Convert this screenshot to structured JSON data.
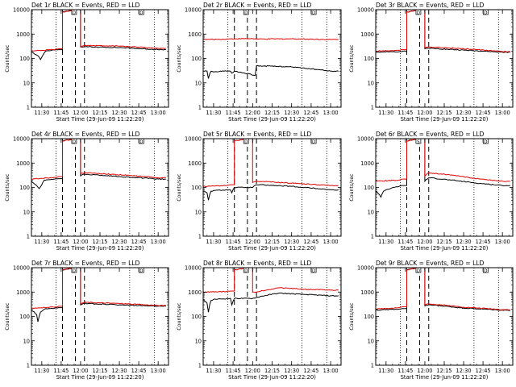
{
  "page": {
    "background": "#ffffff",
    "colors": {
      "events": "#000000",
      "lld": "#e00000",
      "axis": "#000000"
    }
  },
  "chart_data": [
    {
      "type": "line",
      "title": "Det 1r BLACK = Events, RED = LLD",
      "ylabel": "Counts/sec",
      "xlabel": "Start Time (29-Jun-09 11:22:20)",
      "yscale": "log",
      "ylim": [
        1,
        10000
      ],
      "xlim": [
        "11:22",
        "13:08"
      ],
      "x_ticks": [
        "11:30",
        "11:45",
        "12:00",
        "12:15",
        "12:30",
        "12:45",
        "13:00"
      ],
      "y_ticks": [
        "1",
        "10",
        "100",
        "1000",
        "10000"
      ],
      "dashed_lines": [
        "11:46",
        "11:56",
        "12:03"
      ],
      "dotted_lines": [
        "11:41",
        "12:38",
        "12:57"
      ],
      "markers": [
        {
          "label": "D",
          "x": "11:55"
        },
        {
          "label": "D",
          "x": "12:47"
        }
      ],
      "series": [
        {
          "name": "Events",
          "color": "#000000",
          "pattern": "g1_ev",
          "x": [
            "11:22",
            "11:27",
            "11:29",
            "11:31",
            "11:33",
            "11:38",
            "11:43",
            "11:46",
            "11:56",
            "12:00",
            "12:03",
            "12:30",
            "13:00",
            "13:06"
          ],
          "y": [
            180,
            130,
            90,
            140,
            200,
            220,
            230,
            8000,
            10000,
            300,
            300,
            280,
            230,
            230
          ]
        },
        {
          "name": "LLD",
          "color": "#e00000",
          "pattern": "g1_lld",
          "x": [
            "11:22",
            "11:30",
            "11:40",
            "11:43",
            "11:46",
            "11:56",
            "12:00",
            "12:03",
            "12:30",
            "13:00",
            "13:06"
          ],
          "y": [
            200,
            215,
            230,
            250,
            8000,
            10000,
            300,
            340,
            320,
            260,
            260
          ]
        }
      ]
    },
    {
      "type": "line",
      "title": "Det 2r BLACK = Events, RED = LLD",
      "ylabel": "Counts/sec",
      "xlabel": "Start Time (29-Jun-09 11:22:20)",
      "yscale": "log",
      "ylim": [
        1,
        10000
      ],
      "xlim": [
        "11:22",
        "13:08"
      ],
      "x_ticks": [
        "11:30",
        "11:45",
        "12:00",
        "12:15",
        "12:30",
        "12:45",
        "13:00"
      ],
      "y_ticks": [
        "1",
        "10",
        "100",
        "1000",
        "10000"
      ],
      "dashed_lines": [
        "11:46",
        "11:56",
        "12:03"
      ],
      "dotted_lines": [
        "11:41",
        "12:38",
        "12:57"
      ],
      "markers": [
        {
          "label": "D",
          "x": "11:55"
        },
        {
          "label": "D",
          "x": "12:47"
        }
      ],
      "series": [
        {
          "name": "Events",
          "color": "#000000",
          "pattern": "g2_ev",
          "x": [
            "11:22",
            "11:25",
            "11:26",
            "11:28",
            "11:30",
            "11:38",
            "11:43",
            "11:44",
            "11:46",
            "12:02",
            "12:03",
            "12:30",
            "13:00",
            "13:06"
          ],
          "y": [
            30,
            30,
            15,
            30,
            28,
            30,
            30,
            25,
            30,
            20,
            50,
            45,
            30,
            30
          ]
        },
        {
          "name": "LLD",
          "color": "#e00000",
          "pattern": "g2_lld",
          "x": [
            "11:22",
            "11:40",
            "11:46",
            "12:00",
            "12:03",
            "12:30",
            "13:00",
            "13:06"
          ],
          "y": [
            600,
            620,
            640,
            650,
            620,
            640,
            600,
            600
          ]
        }
      ]
    },
    {
      "type": "line",
      "title": "Det 3r BLACK = Events, RED = LLD",
      "ylabel": "Counts/sec",
      "xlabel": "Start Time (29-Jun-09 11:22:20)",
      "yscale": "log",
      "ylim": [
        1,
        10000
      ],
      "xlim": [
        "11:22",
        "13:08"
      ],
      "x_ticks": [
        "11:30",
        "11:45",
        "12:00",
        "12:15",
        "12:30",
        "12:45",
        "13:00"
      ],
      "y_ticks": [
        "1",
        "10",
        "100",
        "1000",
        "10000"
      ],
      "dashed_lines": [
        "11:46",
        "11:56",
        "12:03"
      ],
      "dotted_lines": [
        "11:41",
        "12:38",
        "12:57"
      ],
      "markers": [
        {
          "label": "D",
          "x": "11:55"
        },
        {
          "label": "D",
          "x": "12:47"
        }
      ],
      "series": [
        {
          "name": "Events",
          "color": "#000000",
          "pattern": "g3_ev",
          "x": [
            "11:22",
            "11:40",
            "11:43",
            "11:46",
            "11:56",
            "12:00",
            "12:03",
            "12:30",
            "13:00",
            "13:06"
          ],
          "y": [
            180,
            190,
            200,
            8000,
            10000,
            250,
            260,
            220,
            180,
            180
          ]
        },
        {
          "name": "LLD",
          "color": "#e00000",
          "pattern": "g3_lld",
          "x": [
            "11:22",
            "11:40",
            "11:43",
            "11:46",
            "11:56",
            "12:00",
            "12:03",
            "12:30",
            "13:00",
            "13:06"
          ],
          "y": [
            200,
            215,
            230,
            8000,
            10000,
            280,
            300,
            250,
            190,
            190
          ]
        }
      ]
    },
    {
      "type": "line",
      "title": "Det 4r BLACK = Events, RED = LLD",
      "ylabel": "Counts/sec",
      "xlabel": "Start Time (29-Jun-09 11:22:20)",
      "yscale": "log",
      "ylim": [
        1,
        10000
      ],
      "xlim": [
        "11:22",
        "13:08"
      ],
      "x_ticks": [
        "11:30",
        "11:45",
        "12:00",
        "12:15",
        "12:30",
        "12:45",
        "13:00"
      ],
      "y_ticks": [
        "1",
        "10",
        "100",
        "1000",
        "10000"
      ],
      "dashed_lines": [
        "11:46",
        "11:56",
        "12:03"
      ],
      "dotted_lines": [
        "11:41",
        "12:38",
        "12:57"
      ],
      "markers": [
        {
          "label": "D",
          "x": "11:55"
        },
        {
          "label": "D",
          "x": "12:47"
        }
      ],
      "series": [
        {
          "name": "Events",
          "color": "#000000",
          "pattern": "g4_ev",
          "x": [
            "11:22",
            "11:26",
            "11:28",
            "11:30",
            "11:32",
            "11:40",
            "11:43",
            "11:46",
            "11:56",
            "12:00",
            "12:03",
            "12:30",
            "13:00",
            "13:06"
          ],
          "y": [
            180,
            120,
            90,
            130,
            200,
            220,
            230,
            8000,
            10000,
            300,
            350,
            280,
            220,
            220
          ]
        },
        {
          "name": "LLD",
          "color": "#e00000",
          "pattern": "g4_lld",
          "x": [
            "11:22",
            "11:40",
            "11:43",
            "11:46",
            "11:56",
            "12:00",
            "12:03",
            "12:30",
            "13:00",
            "13:06"
          ],
          "y": [
            220,
            260,
            280,
            8000,
            10000,
            380,
            400,
            330,
            250,
            250
          ]
        }
      ]
    },
    {
      "type": "line",
      "title": "Det 5r BLACK = Events, RED = LLD",
      "ylabel": "Counts/sec",
      "xlabel": "Start Time (29-Jun-09 11:22:20)",
      "yscale": "log",
      "ylim": [
        1,
        10000
      ],
      "xlim": [
        "11:22",
        "13:08"
      ],
      "x_ticks": [
        "11:30",
        "11:45",
        "12:00",
        "12:15",
        "12:30",
        "12:45",
        "13:00"
      ],
      "y_ticks": [
        "1",
        "10",
        "100",
        "1000",
        "10000"
      ],
      "dashed_lines": [
        "11:46",
        "11:56",
        "12:03"
      ],
      "dotted_lines": [
        "11:41",
        "12:38",
        "12:57"
      ],
      "markers": [
        {
          "label": "D",
          "x": "11:55"
        },
        {
          "label": "D",
          "x": "12:47"
        }
      ],
      "series": [
        {
          "name": "Events",
          "color": "#000000",
          "pattern": "g5_ev",
          "x": [
            "11:22",
            "11:25",
            "11:26",
            "11:28",
            "11:31",
            "11:40",
            "11:43",
            "11:44",
            "11:46",
            "12:00",
            "12:03",
            "12:30",
            "13:00",
            "13:06"
          ],
          "y": [
            70,
            60,
            30,
            70,
            75,
            80,
            80,
            60,
            100,
            100,
            130,
            110,
            80,
            80
          ]
        },
        {
          "name": "LLD",
          "color": "#e00000",
          "pattern": "g5_lld",
          "x": [
            "11:22",
            "11:30",
            "11:40",
            "11:43",
            "11:46",
            "11:56",
            "12:00",
            "12:03",
            "12:30",
            "13:00",
            "13:06"
          ],
          "y": [
            110,
            115,
            120,
            130,
            8000,
            10000,
            160,
            180,
            150,
            120,
            120
          ]
        }
      ]
    },
    {
      "type": "line",
      "title": "Det 6r BLACK = Events, RED = LLD",
      "ylabel": "Counts/sec",
      "xlabel": "Start Time (29-Jun-09 11:22:20)",
      "yscale": "log",
      "ylim": [
        1,
        10000
      ],
      "xlim": [
        "11:22",
        "13:08"
      ],
      "x_ticks": [
        "11:30",
        "11:45",
        "12:00",
        "12:15",
        "12:30",
        "12:45",
        "13:00"
      ],
      "y_ticks": [
        "1",
        "10",
        "100",
        "1000",
        "10000"
      ],
      "dashed_lines": [
        "11:46",
        "11:56",
        "12:03"
      ],
      "dotted_lines": [
        "11:41",
        "12:38",
        "12:57"
      ],
      "markers": [
        {
          "label": "S",
          "x": "11:55"
        },
        {
          "label": "D",
          "x": "12:47"
        }
      ],
      "series": [
        {
          "name": "Events",
          "color": "#000000",
          "pattern": "g6_ev",
          "x": [
            "11:22",
            "11:25",
            "11:26",
            "11:28",
            "11:30",
            "11:43",
            "11:46",
            "11:56",
            "12:00",
            "12:03",
            "12:20",
            "12:40",
            "13:00",
            "13:06"
          ],
          "y": [
            70,
            50,
            40,
            70,
            80,
            120,
            8000,
            10000,
            180,
            250,
            200,
            150,
            120,
            120
          ]
        },
        {
          "name": "LLD",
          "color": "#e00000",
          "pattern": "g6_lld",
          "x": [
            "11:22",
            "11:40",
            "11:43",
            "11:46",
            "11:56",
            "12:00",
            "12:03",
            "12:20",
            "12:40",
            "13:00",
            "13:06"
          ],
          "y": [
            180,
            200,
            220,
            8000,
            10000,
            300,
            400,
            320,
            230,
            180,
            180
          ]
        }
      ]
    },
    {
      "type": "line",
      "title": "Det 7r BLACK = Events, RED = LLD",
      "ylabel": "Counts/sec",
      "xlabel": "Start Time (29-Jun-09 11:22:20)",
      "yscale": "log",
      "ylim": [
        1,
        10000
      ],
      "xlim": [
        "11:22",
        "13:08"
      ],
      "x_ticks": [
        "11:30",
        "11:45",
        "12:00",
        "12:15",
        "12:30",
        "12:45",
        "13:00"
      ],
      "y_ticks": [
        "1",
        "10",
        "100",
        "1000",
        "10000"
      ],
      "dashed_lines": [
        "11:46",
        "11:56",
        "12:03"
      ],
      "dotted_lines": [
        "11:41",
        "12:38",
        "12:57"
      ],
      "markers": [
        {
          "label": "D",
          "x": "11:55"
        },
        {
          "label": "D",
          "x": "12:47"
        }
      ],
      "series": [
        {
          "name": "Events",
          "color": "#000000",
          "pattern": "g7_ev",
          "x": [
            "11:22",
            "11:26",
            "11:27",
            "11:29",
            "11:32",
            "11:40",
            "11:43",
            "11:46",
            "11:56",
            "12:00",
            "12:03",
            "12:30",
            "13:00",
            "13:06"
          ],
          "y": [
            180,
            120,
            60,
            150,
            200,
            220,
            230,
            8000,
            10000,
            300,
            340,
            300,
            260,
            260
          ]
        },
        {
          "name": "LLD",
          "color": "#e00000",
          "pattern": "g7_lld",
          "x": [
            "11:22",
            "11:40",
            "11:43",
            "11:46",
            "11:56",
            "12:00",
            "12:03",
            "12:30",
            "13:00",
            "13:06"
          ],
          "y": [
            220,
            240,
            260,
            8000,
            10000,
            330,
            380,
            340,
            280,
            280
          ]
        }
      ]
    },
    {
      "type": "line",
      "title": "Det 8r BLACK = Events, RED = LLD",
      "ylabel": "Counts/sec",
      "xlabel": "Start Time (29-Jun-09 11:22:20)",
      "yscale": "log",
      "ylim": [
        1,
        10000
      ],
      "xlim": [
        "11:22",
        "13:08"
      ],
      "x_ticks": [
        "11:30",
        "11:45",
        "12:00",
        "12:15",
        "12:30",
        "12:45",
        "13:00"
      ],
      "y_ticks": [
        "1",
        "10",
        "100",
        "1000",
        "10000"
      ],
      "dashed_lines": [
        "11:46",
        "11:56",
        "12:03"
      ],
      "dotted_lines": [
        "11:41",
        "12:38",
        "12:57"
      ],
      "markers": [
        {
          "label": "D",
          "x": "11:55"
        },
        {
          "label": "D",
          "x": "12:47"
        }
      ],
      "series": [
        {
          "name": "Events",
          "color": "#000000",
          "pattern": "g8_ev",
          "x": [
            "11:22",
            "11:25",
            "11:26",
            "11:28",
            "11:30",
            "11:43",
            "11:44",
            "11:46",
            "12:00",
            "12:03",
            "12:20",
            "12:40",
            "13:00",
            "13:06"
          ],
          "y": [
            500,
            350,
            150,
            450,
            500,
            550,
            300,
            550,
            550,
            600,
            900,
            800,
            700,
            700
          ]
        },
        {
          "name": "LLD",
          "color": "#e00000",
          "pattern": "g8_lld",
          "x": [
            "11:22",
            "11:40",
            "11:43",
            "11:46",
            "11:56",
            "12:00",
            "12:03",
            "12:20",
            "12:40",
            "13:00",
            "13:06"
          ],
          "y": [
            1000,
            1050,
            1100,
            8000,
            10000,
            1000,
            1000,
            1500,
            1300,
            1200,
            1200
          ]
        }
      ]
    },
    {
      "type": "line",
      "title": "Det 9r BLACK = Events, RED = LLD",
      "ylabel": "Counts/sec",
      "xlabel": "Start Time (29-Jun-09 11:22:20)",
      "yscale": "log",
      "ylim": [
        1,
        10000
      ],
      "xlim": [
        "11:22",
        "13:08"
      ],
      "x_ticks": [
        "11:30",
        "11:45",
        "12:00",
        "12:15",
        "12:30",
        "12:45",
        "13:00"
      ],
      "y_ticks": [
        "1",
        "10",
        "100",
        "1000",
        "10000"
      ],
      "dashed_lines": [
        "11:46",
        "11:56",
        "12:03"
      ],
      "dotted_lines": [
        "11:41",
        "12:38",
        "12:57"
      ],
      "markers": [
        {
          "label": "D",
          "x": "11:55"
        },
        {
          "label": "D",
          "x": "12:47"
        }
      ],
      "series": [
        {
          "name": "Events",
          "color": "#000000",
          "pattern": "g9_ev",
          "x": [
            "11:22",
            "11:40",
            "11:43",
            "11:46",
            "11:56",
            "12:00",
            "12:03",
            "12:30",
            "13:00",
            "13:06"
          ],
          "y": [
            180,
            200,
            210,
            8000,
            10000,
            270,
            300,
            220,
            180,
            180
          ]
        },
        {
          "name": "LLD",
          "color": "#e00000",
          "pattern": "g9_lld",
          "x": [
            "11:22",
            "11:40",
            "11:43",
            "11:46",
            "11:56",
            "12:00",
            "12:03",
            "12:30",
            "13:00",
            "13:06"
          ],
          "y": [
            200,
            230,
            250,
            8000,
            10000,
            300,
            330,
            240,
            190,
            190
          ]
        }
      ]
    }
  ]
}
